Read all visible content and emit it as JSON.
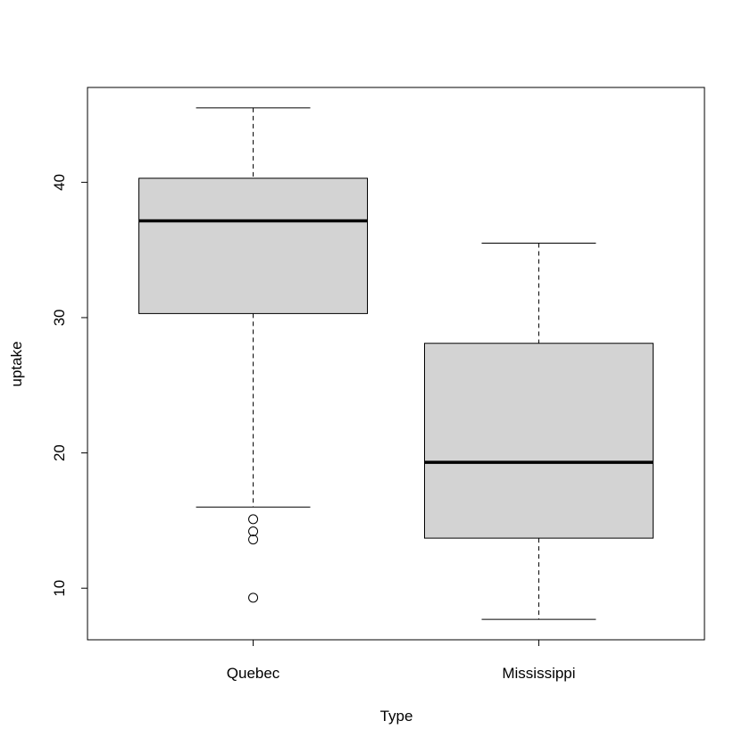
{
  "chart_data": {
    "type": "boxplot",
    "x_label": "Type",
    "y_label": "uptake",
    "categories": [
      "Quebec",
      "Mississippi"
    ],
    "boxes": [
      {
        "min": 16.0,
        "q1": 30.3,
        "median": 37.15,
        "q3": 40.3,
        "max": 45.5,
        "outliers": [
          15.1,
          14.2,
          13.6,
          9.3
        ]
      },
      {
        "min": 7.7,
        "q1": 13.7,
        "median": 19.3,
        "q3": 28.1,
        "max": 35.5,
        "outliers": []
      }
    ],
    "color": "#d3d3d3",
    "ylim": [
      6.188,
      47.012
    ],
    "yticks": [
      10,
      20,
      30,
      40
    ]
  }
}
